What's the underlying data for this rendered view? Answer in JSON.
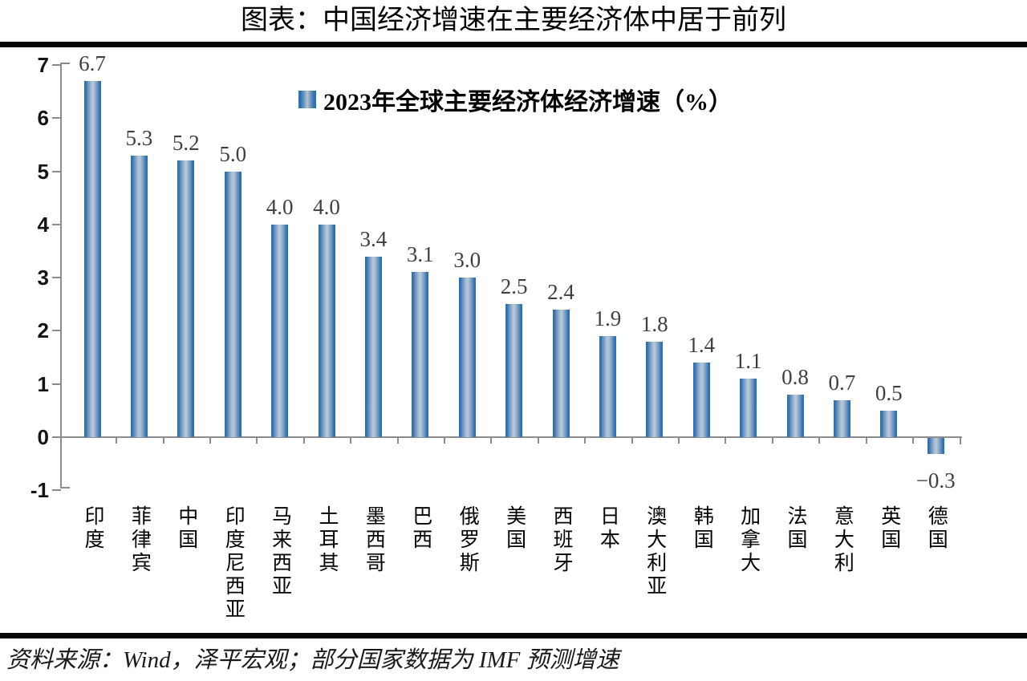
{
  "title": "图表：中国经济增速在主要经济体中居于前列",
  "source_note": "资料来源：Wind，泽平宏观；部分国家数据为 IMF 预测增速",
  "colors": {
    "bar_edge": "#2b72b9",
    "bar_mid": "#6d92b7",
    "bar_center_highlight": "#b2c6da",
    "axis": "#8c8c8c",
    "value_label": "#3f3f3f",
    "divider_rule": "#070707"
  },
  "chart_data": {
    "type": "bar",
    "title": "2023年全球主要经济体经济增速（%）",
    "legend": {
      "label": "2023年全球主要经济体经济增速（%）",
      "position": "top-center",
      "marker": "blue-gradient-square"
    },
    "categories": [
      "印度",
      "菲律宾",
      "中国",
      "印度尼西亚",
      "马来西亚",
      "土耳其",
      "墨西哥",
      "巴西",
      "俄罗斯",
      "美国",
      "西班牙",
      "日本",
      "澳大利亚",
      "韩国",
      "加拿大",
      "法国",
      "意大利",
      "英国",
      "德国"
    ],
    "values": [
      6.7,
      5.3,
      5.2,
      5.0,
      4.0,
      4.0,
      3.4,
      3.1,
      3.0,
      2.5,
      2.4,
      1.9,
      1.8,
      1.4,
      1.1,
      0.8,
      0.7,
      0.5,
      -0.3
    ],
    "value_labels": [
      "6.7",
      "5.3",
      "5.2",
      "5.0",
      "4.0",
      "4.0",
      "3.4",
      "3.1",
      "3.0",
      "2.5",
      "2.4",
      "1.9",
      "1.8",
      "1.4",
      "1.1",
      "0.8",
      "0.7",
      "0.5",
      "−0.3"
    ],
    "xlabel": "",
    "ylabel": "",
    "ylim": [
      -1,
      7
    ],
    "yticks": [
      7,
      6,
      5,
      4,
      3,
      2,
      1,
      0,
      -1
    ],
    "ytick_labels": [
      "7",
      "6",
      "5",
      "4",
      "3",
      "2",
      "1",
      "0",
      "-1"
    ],
    "grid": false
  }
}
